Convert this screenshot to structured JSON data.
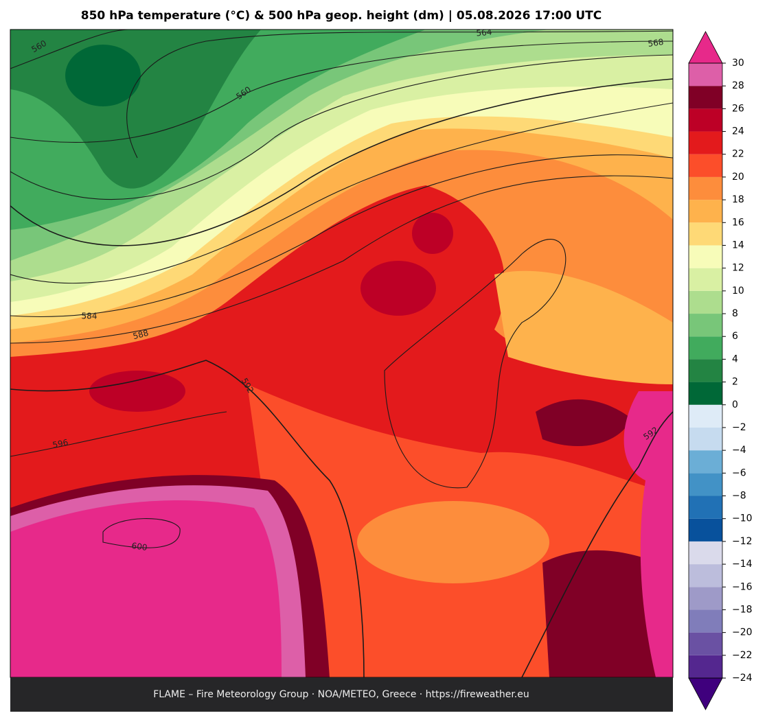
{
  "title": "850 hPa temperature (°C) & 500 hPa geop. height (dm)  |  05.08.2026 17:00 UTC",
  "contour_labels": [
    "560",
    "564",
    "568",
    "560",
    "584",
    "588",
    "592",
    "596",
    "600",
    "592"
  ],
  "colorbar": {
    "ticks": [
      {
        "value": -24,
        "label": "−24"
      },
      {
        "value": -22,
        "label": "−22"
      },
      {
        "value": -20,
        "label": "−20"
      },
      {
        "value": -18,
        "label": "−18"
      },
      {
        "value": -16,
        "label": "−16"
      },
      {
        "value": -14,
        "label": "−14"
      },
      {
        "value": -12,
        "label": "−12"
      },
      {
        "value": -10,
        "label": "−10"
      },
      {
        "value": -8,
        "label": "−8"
      },
      {
        "value": -6,
        "label": "−6"
      },
      {
        "value": -4,
        "label": "−4"
      },
      {
        "value": -2,
        "label": "−2"
      },
      0,
      2,
      4,
      6,
      8,
      10,
      12,
      14,
      16,
      18,
      20,
      22,
      24,
      26,
      28,
      30
    ],
    "colors": [
      "#54278f",
      "#6a51a3",
      "#807dba",
      "#9e9ac8",
      "#bcbddc",
      "#dadaeb",
      "#08519c",
      "#2171b5",
      "#4292c6",
      "#6baed6",
      "#c6dbef",
      "#deebf7",
      "#006837",
      "#238443",
      "#41ab5d",
      "#78c679",
      "#addd8e",
      "#d9f0a3",
      "#f7fcb9",
      "#fed976",
      "#feb24c",
      "#fd8d3c",
      "#fc4e2a",
      "#e31a1c",
      "#bd0026",
      "#800026",
      "#dd5fa8"
    ],
    "under_color": "#3f007d",
    "over_color": "#e7298a"
  },
  "footer": "FLAME – Fire Meteorology Group · NOA/METEO, Greece · https://fireweather.eu"
}
